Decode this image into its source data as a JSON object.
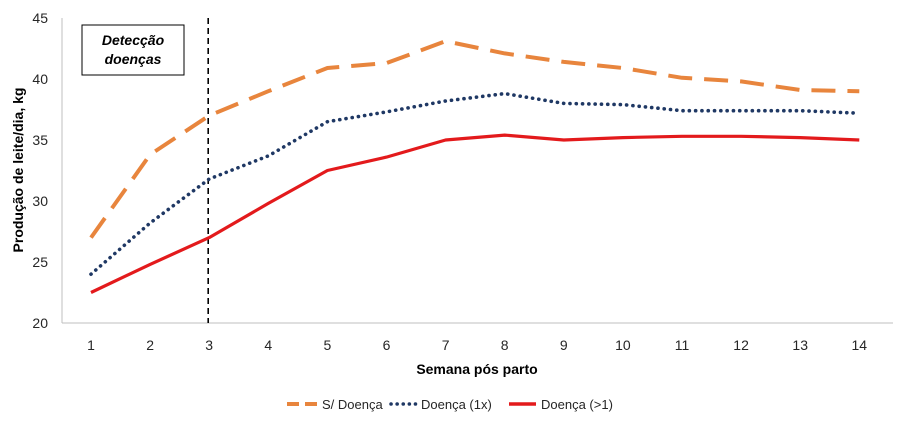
{
  "chart_data": {
    "type": "line",
    "xlabel": "Semana pós parto",
    "ylabel": "Produção de leite/dia, kg",
    "categories": [
      "1",
      "2",
      "3",
      "4",
      "5",
      "6",
      "7",
      "8",
      "9",
      "10",
      "11",
      "12",
      "13",
      "14"
    ],
    "ylim": [
      20,
      45
    ],
    "yticks": [
      "20",
      "25",
      "30",
      "35",
      "40",
      "45"
    ],
    "grid": false,
    "legend_position": "bottom",
    "series": [
      {
        "name": "S/ Doença",
        "color": "#E8853D",
        "dash": "long-dash",
        "values": [
          27,
          33.8,
          37,
          39,
          40.9,
          41.3,
          43.1,
          42.1,
          41.4,
          40.9,
          40.1,
          39.8,
          39.1,
          39
        ]
      },
      {
        "name": "Doença (1x)",
        "color": "#1F3864",
        "dash": "dot",
        "values": [
          24,
          28.2,
          31.8,
          33.7,
          36.5,
          37.3,
          38.2,
          38.8,
          38,
          37.9,
          37.4,
          37.4,
          37.4,
          37.2
        ]
      },
      {
        "name": "Doença (>1)",
        "color": "#E31A1C",
        "dash": "solid",
        "values": [
          22.5,
          24.8,
          27,
          29.8,
          32.5,
          33.6,
          35,
          35.4,
          35,
          35.2,
          35.3,
          35.3,
          35.2,
          35
        ]
      }
    ],
    "annotations": [
      {
        "text_lines": [
          "Detecção",
          "doenças"
        ],
        "at_category": "3",
        "marker": "vertical-dashed-line"
      }
    ]
  }
}
